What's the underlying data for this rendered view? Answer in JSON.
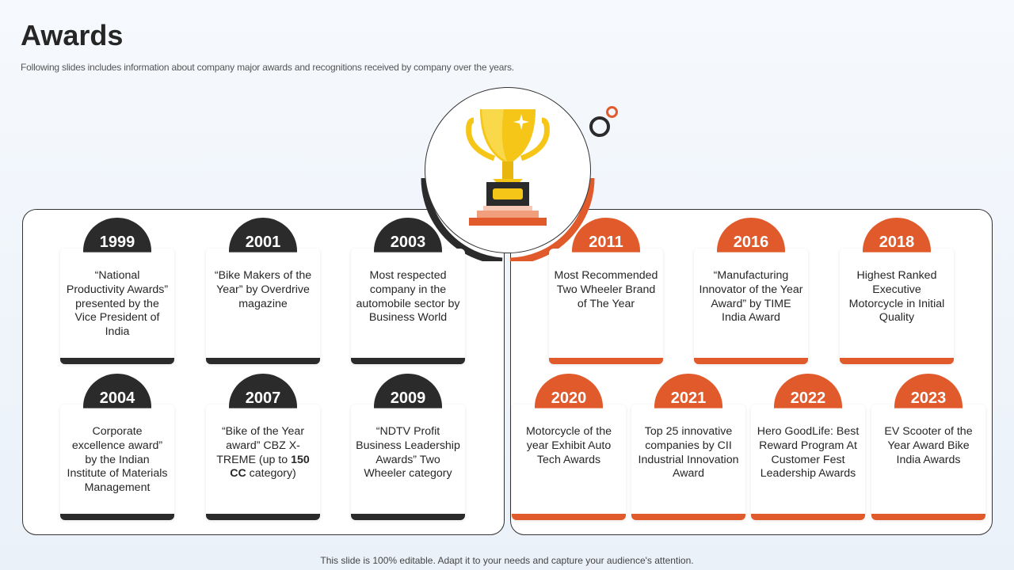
{
  "title": "Awards",
  "subtitle": "Following slides includes information about company major awards and recognitions received by company over the years.",
  "footer": "This slide is 100% editable. Adapt it to your needs and capture your audience's attention.",
  "colors": {
    "dark": "#2b2b2b",
    "orange": "#e05a2b",
    "gold": "#f5c518"
  },
  "icons": {
    "trophy": "trophy-icon"
  },
  "awards": [
    {
      "year": "1999",
      "text": "“National Productivity Awards” presented by the Vice President of India"
    },
    {
      "year": "2001",
      "text": "“Bike Makers of the Year” by Overdrive magazine"
    },
    {
      "year": "2003",
      "text": "Most respected company in the automobile sector by Business World"
    },
    {
      "year": "2004",
      "text": "Corporate excellence award” by the Indian Institute of Materials Management"
    },
    {
      "year": "2007",
      "text_a": "“Bike of the Year award” CBZ X-TREME (up to ",
      "text_b": "150 CC",
      "text_c": " category)"
    },
    {
      "year": "2009",
      "text": "“NDTV Profit Business Leadership Awards” Two Wheeler category"
    },
    {
      "year": "2011",
      "text": "Most Recommended Two Wheeler Brand of The Year"
    },
    {
      "year": "2016",
      "text": "“Manufacturing Innovator of the Year Award” by TIME India Award"
    },
    {
      "year": "2018",
      "text": "Highest Ranked Executive Motorcycle in Initial Quality"
    },
    {
      "year": "2020",
      "text": "Motorcycle of the year Exhibit Auto Tech Awards"
    },
    {
      "year": "2021",
      "text": "Top 25 innovative companies by CII Industrial Innovation Award"
    },
    {
      "year": "2022",
      "text": "Hero GoodLife: Best Reward Program At Customer Fest Leadership Awards"
    },
    {
      "year": "2023",
      "text": "EV Scooter of the Year Award Bike India Awards"
    }
  ]
}
